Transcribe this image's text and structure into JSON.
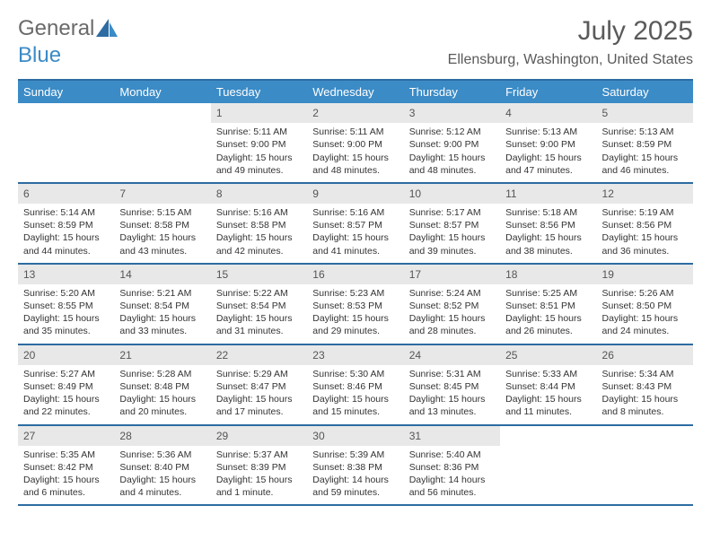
{
  "brand": {
    "part1": "General",
    "part2": "Blue"
  },
  "title": "July 2025",
  "location": "Ellensburg, Washington, United States",
  "colors": {
    "header_bar": "#3b8bc6",
    "border": "#2d6ca2",
    "daynum_bg": "#e8e8e8",
    "text": "#333333",
    "muted": "#5a5a5a"
  },
  "dow": [
    "Sunday",
    "Monday",
    "Tuesday",
    "Wednesday",
    "Thursday",
    "Friday",
    "Saturday"
  ],
  "weeks": [
    [
      null,
      null,
      {
        "n": "1",
        "sr": "Sunrise: 5:11 AM",
        "ss": "Sunset: 9:00 PM",
        "dl1": "Daylight: 15 hours",
        "dl2": "and 49 minutes."
      },
      {
        "n": "2",
        "sr": "Sunrise: 5:11 AM",
        "ss": "Sunset: 9:00 PM",
        "dl1": "Daylight: 15 hours",
        "dl2": "and 48 minutes."
      },
      {
        "n": "3",
        "sr": "Sunrise: 5:12 AM",
        "ss": "Sunset: 9:00 PM",
        "dl1": "Daylight: 15 hours",
        "dl2": "and 48 minutes."
      },
      {
        "n": "4",
        "sr": "Sunrise: 5:13 AM",
        "ss": "Sunset: 9:00 PM",
        "dl1": "Daylight: 15 hours",
        "dl2": "and 47 minutes."
      },
      {
        "n": "5",
        "sr": "Sunrise: 5:13 AM",
        "ss": "Sunset: 8:59 PM",
        "dl1": "Daylight: 15 hours",
        "dl2": "and 46 minutes."
      }
    ],
    [
      {
        "n": "6",
        "sr": "Sunrise: 5:14 AM",
        "ss": "Sunset: 8:59 PM",
        "dl1": "Daylight: 15 hours",
        "dl2": "and 44 minutes."
      },
      {
        "n": "7",
        "sr": "Sunrise: 5:15 AM",
        "ss": "Sunset: 8:58 PM",
        "dl1": "Daylight: 15 hours",
        "dl2": "and 43 minutes."
      },
      {
        "n": "8",
        "sr": "Sunrise: 5:16 AM",
        "ss": "Sunset: 8:58 PM",
        "dl1": "Daylight: 15 hours",
        "dl2": "and 42 minutes."
      },
      {
        "n": "9",
        "sr": "Sunrise: 5:16 AM",
        "ss": "Sunset: 8:57 PM",
        "dl1": "Daylight: 15 hours",
        "dl2": "and 41 minutes."
      },
      {
        "n": "10",
        "sr": "Sunrise: 5:17 AM",
        "ss": "Sunset: 8:57 PM",
        "dl1": "Daylight: 15 hours",
        "dl2": "and 39 minutes."
      },
      {
        "n": "11",
        "sr": "Sunrise: 5:18 AM",
        "ss": "Sunset: 8:56 PM",
        "dl1": "Daylight: 15 hours",
        "dl2": "and 38 minutes."
      },
      {
        "n": "12",
        "sr": "Sunrise: 5:19 AM",
        "ss": "Sunset: 8:56 PM",
        "dl1": "Daylight: 15 hours",
        "dl2": "and 36 minutes."
      }
    ],
    [
      {
        "n": "13",
        "sr": "Sunrise: 5:20 AM",
        "ss": "Sunset: 8:55 PM",
        "dl1": "Daylight: 15 hours",
        "dl2": "and 35 minutes."
      },
      {
        "n": "14",
        "sr": "Sunrise: 5:21 AM",
        "ss": "Sunset: 8:54 PM",
        "dl1": "Daylight: 15 hours",
        "dl2": "and 33 minutes."
      },
      {
        "n": "15",
        "sr": "Sunrise: 5:22 AM",
        "ss": "Sunset: 8:54 PM",
        "dl1": "Daylight: 15 hours",
        "dl2": "and 31 minutes."
      },
      {
        "n": "16",
        "sr": "Sunrise: 5:23 AM",
        "ss": "Sunset: 8:53 PM",
        "dl1": "Daylight: 15 hours",
        "dl2": "and 29 minutes."
      },
      {
        "n": "17",
        "sr": "Sunrise: 5:24 AM",
        "ss": "Sunset: 8:52 PM",
        "dl1": "Daylight: 15 hours",
        "dl2": "and 28 minutes."
      },
      {
        "n": "18",
        "sr": "Sunrise: 5:25 AM",
        "ss": "Sunset: 8:51 PM",
        "dl1": "Daylight: 15 hours",
        "dl2": "and 26 minutes."
      },
      {
        "n": "19",
        "sr": "Sunrise: 5:26 AM",
        "ss": "Sunset: 8:50 PM",
        "dl1": "Daylight: 15 hours",
        "dl2": "and 24 minutes."
      }
    ],
    [
      {
        "n": "20",
        "sr": "Sunrise: 5:27 AM",
        "ss": "Sunset: 8:49 PM",
        "dl1": "Daylight: 15 hours",
        "dl2": "and 22 minutes."
      },
      {
        "n": "21",
        "sr": "Sunrise: 5:28 AM",
        "ss": "Sunset: 8:48 PM",
        "dl1": "Daylight: 15 hours",
        "dl2": "and 20 minutes."
      },
      {
        "n": "22",
        "sr": "Sunrise: 5:29 AM",
        "ss": "Sunset: 8:47 PM",
        "dl1": "Daylight: 15 hours",
        "dl2": "and 17 minutes."
      },
      {
        "n": "23",
        "sr": "Sunrise: 5:30 AM",
        "ss": "Sunset: 8:46 PM",
        "dl1": "Daylight: 15 hours",
        "dl2": "and 15 minutes."
      },
      {
        "n": "24",
        "sr": "Sunrise: 5:31 AM",
        "ss": "Sunset: 8:45 PM",
        "dl1": "Daylight: 15 hours",
        "dl2": "and 13 minutes."
      },
      {
        "n": "25",
        "sr": "Sunrise: 5:33 AM",
        "ss": "Sunset: 8:44 PM",
        "dl1": "Daylight: 15 hours",
        "dl2": "and 11 minutes."
      },
      {
        "n": "26",
        "sr": "Sunrise: 5:34 AM",
        "ss": "Sunset: 8:43 PM",
        "dl1": "Daylight: 15 hours",
        "dl2": "and 8 minutes."
      }
    ],
    [
      {
        "n": "27",
        "sr": "Sunrise: 5:35 AM",
        "ss": "Sunset: 8:42 PM",
        "dl1": "Daylight: 15 hours",
        "dl2": "and 6 minutes."
      },
      {
        "n": "28",
        "sr": "Sunrise: 5:36 AM",
        "ss": "Sunset: 8:40 PM",
        "dl1": "Daylight: 15 hours",
        "dl2": "and 4 minutes."
      },
      {
        "n": "29",
        "sr": "Sunrise: 5:37 AM",
        "ss": "Sunset: 8:39 PM",
        "dl1": "Daylight: 15 hours",
        "dl2": "and 1 minute."
      },
      {
        "n": "30",
        "sr": "Sunrise: 5:39 AM",
        "ss": "Sunset: 8:38 PM",
        "dl1": "Daylight: 14 hours",
        "dl2": "and 59 minutes."
      },
      {
        "n": "31",
        "sr": "Sunrise: 5:40 AM",
        "ss": "Sunset: 8:36 PM",
        "dl1": "Daylight: 14 hours",
        "dl2": "and 56 minutes."
      },
      null,
      null
    ]
  ]
}
